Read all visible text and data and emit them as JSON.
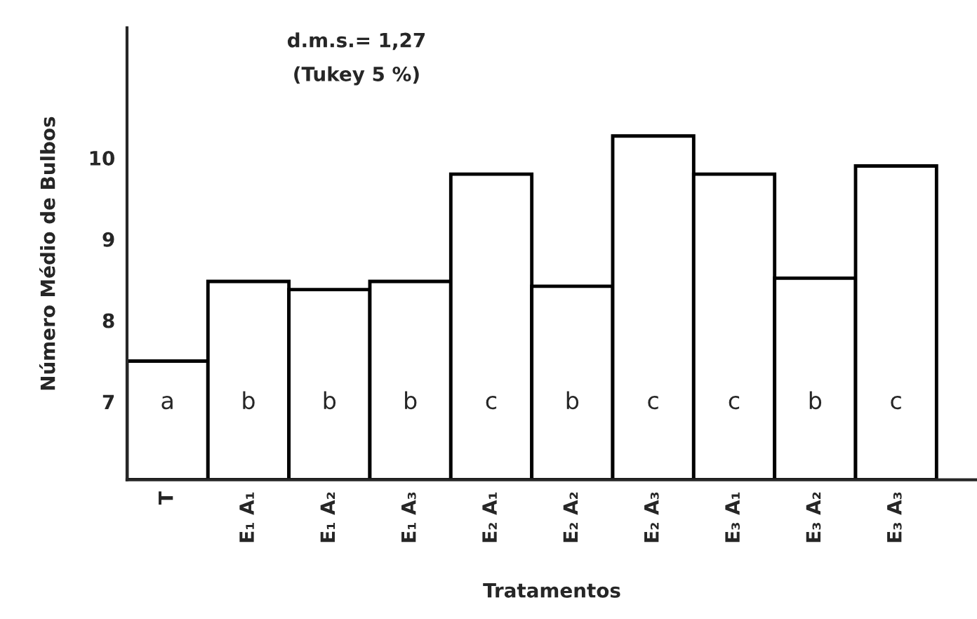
{
  "chart_data": {
    "type": "bar",
    "xlabel": "Tratamentos",
    "ylabel": "Número Médio de Bulbos",
    "categories": [
      "T",
      "E₁ A₁",
      "E₁ A₂",
      "E₁ A₃",
      "E₂ A₁",
      "E₂ A₂",
      "E₂ A₃",
      "E₃ A₁",
      "E₃ A₂",
      "E₃ A₃"
    ],
    "values": [
      7.5,
      8.48,
      8.38,
      8.48,
      9.8,
      8.42,
      10.27,
      9.8,
      8.52,
      9.9
    ],
    "value_labels": [
      "a",
      "b",
      "b",
      "b",
      "c",
      "b",
      "c",
      "c",
      "b",
      "c"
    ],
    "color": "#ffffff",
    "ylim": [
      6.04,
      11.6
    ],
    "yticks": [
      7,
      8,
      9,
      10
    ],
    "annotations": [
      "d.m.s.= 1,27",
      "(Tukey 5 %)"
    ],
    "grid": false,
    "legend": false
  }
}
